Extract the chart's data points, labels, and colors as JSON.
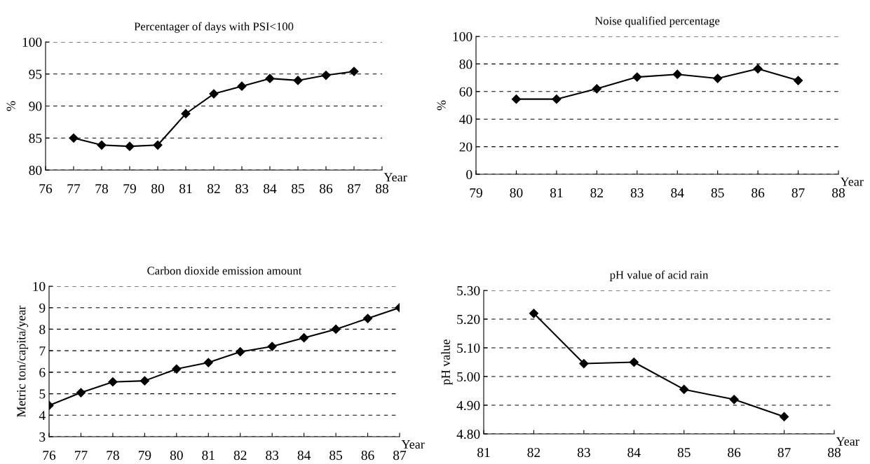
{
  "chart_data": [
    {
      "type": "line",
      "title": "Percentager of days with PSI<100",
      "xlabel": "Year",
      "ylabel": "%",
      "x": [
        77,
        78,
        79,
        80,
        81,
        82,
        83,
        84,
        85,
        86,
        87
      ],
      "series": [
        {
          "color": "#000000",
          "values": [
            85.0,
            83.9,
            83.7,
            83.9,
            88.8,
            91.9,
            93.1,
            94.3,
            94.0,
            94.8,
            95.4
          ]
        }
      ],
      "xlim": [
        76,
        88
      ],
      "xticks": [
        76,
        77,
        78,
        79,
        80,
        81,
        82,
        83,
        84,
        85,
        86,
        87,
        88
      ],
      "ylim": [
        80,
        100
      ],
      "yticks": [
        80,
        85,
        90,
        95,
        100
      ],
      "grid": "y",
      "marker": "diamond",
      "line_style": "solid"
    },
    {
      "type": "line",
      "title": "Noise qualified percentage",
      "xlabel": "Year",
      "ylabel": "%",
      "x": [
        80,
        81,
        82,
        83,
        84,
        85,
        86,
        87
      ],
      "series": [
        {
          "color": "#000000",
          "values": [
            54.5,
            54.5,
            62,
            70.5,
            72.5,
            69.5,
            76.5,
            68
          ]
        }
      ],
      "xlim": [
        79,
        88
      ],
      "xticks": [
        79,
        80,
        81,
        82,
        83,
        84,
        85,
        86,
        87,
        88
      ],
      "ylim": [
        0,
        100
      ],
      "yticks": [
        0,
        20,
        40,
        60,
        80,
        100
      ],
      "grid": "y",
      "marker": "diamond",
      "line_style": "solid"
    },
    {
      "type": "line",
      "title": "Carbon dioxide emission amount",
      "xlabel": "Year",
      "ylabel": "Metric ton/capita/year",
      "x": [
        76,
        77,
        78,
        79,
        80,
        81,
        82,
        83,
        84,
        85,
        86,
        87
      ],
      "series": [
        {
          "color": "#000000",
          "values": [
            4.45,
            5.05,
            5.55,
            5.6,
            6.15,
            6.45,
            6.95,
            7.2,
            7.6,
            8.0,
            8.5,
            9.0
          ]
        }
      ],
      "xlim": [
        76,
        87
      ],
      "xticks": [
        76,
        77,
        78,
        79,
        80,
        81,
        82,
        83,
        84,
        85,
        86,
        87
      ],
      "ylim": [
        3,
        10
      ],
      "yticks": [
        3,
        4,
        5,
        6,
        7,
        8,
        9,
        10
      ],
      "grid": "y",
      "marker": "diamond",
      "line_style": "solid"
    },
    {
      "type": "line",
      "title": "pH value of acid rain",
      "xlabel": "Year",
      "ylabel": "pH value",
      "x": [
        82,
        83,
        84,
        85,
        86,
        87
      ],
      "series": [
        {
          "color": "#000000",
          "values": [
            5.22,
            5.045,
            5.05,
            4.955,
            4.92,
            4.86
          ]
        }
      ],
      "xlim": [
        81,
        88
      ],
      "xticks": [
        81,
        82,
        83,
        84,
        85,
        86,
        87,
        88
      ],
      "ylim": [
        4.8,
        5.3
      ],
      "yticks": [
        {
          "value": 4.8,
          "label": "4.80"
        },
        {
          "value": 4.9,
          "label": "4.90"
        },
        {
          "value": 5.0,
          "label": "5.00"
        },
        {
          "value": 5.1,
          "label": "5.10"
        },
        {
          "value": 5.2,
          "label": "5.20"
        },
        {
          "value": 5.3,
          "label": "5.30"
        }
      ],
      "grid": "y",
      "marker": "diamond",
      "line_style": "solid"
    }
  ]
}
